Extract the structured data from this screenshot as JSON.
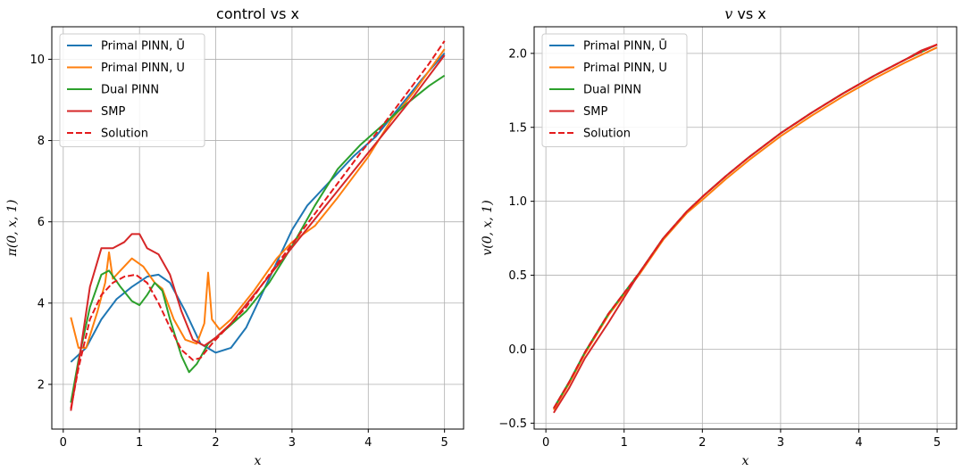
{
  "chart_data": [
    {
      "type": "line",
      "title": "control vs x",
      "xlabel": "x",
      "ylabel": "π(0, x, 1)",
      "xlim": [
        -0.15,
        5.25
      ],
      "ylim": [
        0.9,
        10.8
      ],
      "xticks": [
        "0",
        "1",
        "2",
        "3",
        "4",
        "5"
      ],
      "yticks": [
        "2",
        "4",
        "6",
        "8",
        "10"
      ],
      "grid": true,
      "legend_position": "top-left",
      "series": [
        {
          "name": "Primal PINN, Ū",
          "color": "#1f77b4",
          "dashed": false,
          "x": [
            0.1,
            0.3,
            0.5,
            0.7,
            0.9,
            1.1,
            1.25,
            1.4,
            1.6,
            1.8,
            2.0,
            2.2,
            2.4,
            2.6,
            2.8,
            3.0,
            3.2,
            3.5,
            3.8,
            4.1,
            4.4,
            4.7,
            5.0
          ],
          "y": [
            2.55,
            2.9,
            3.6,
            4.1,
            4.4,
            4.65,
            4.7,
            4.5,
            3.8,
            3.0,
            2.78,
            2.9,
            3.4,
            4.2,
            5.0,
            5.8,
            6.4,
            7.0,
            7.6,
            8.1,
            8.8,
            9.5,
            10.15
          ]
        },
        {
          "name": "Primal PINN, U",
          "color": "#ff7f0e",
          "dashed": false,
          "x": [
            0.1,
            0.2,
            0.3,
            0.45,
            0.55,
            0.6,
            0.65,
            0.75,
            0.9,
            1.05,
            1.2,
            1.3,
            1.45,
            1.6,
            1.75,
            1.85,
            1.9,
            1.95,
            2.05,
            2.2,
            2.5,
            2.8,
            3.0,
            3.3,
            3.6,
            4.0,
            4.3,
            4.6,
            5.0
          ],
          "y": [
            3.65,
            2.9,
            2.9,
            3.8,
            4.5,
            5.25,
            4.6,
            4.8,
            5.1,
            4.9,
            4.5,
            4.35,
            3.6,
            3.1,
            3.0,
            3.5,
            4.75,
            3.6,
            3.35,
            3.6,
            4.3,
            5.1,
            5.5,
            5.9,
            6.6,
            7.6,
            8.5,
            9.2,
            10.25
          ]
        },
        {
          "name": "Dual PINN",
          "color": "#2ca02c",
          "dashed": false,
          "x": [
            0.1,
            0.2,
            0.35,
            0.5,
            0.6,
            0.75,
            0.9,
            1.0,
            1.1,
            1.2,
            1.3,
            1.4,
            1.55,
            1.65,
            1.75,
            1.9,
            2.1,
            2.4,
            2.7,
            3.0,
            3.3,
            3.6,
            3.9,
            4.2,
            4.5,
            4.8,
            5.0
          ],
          "y": [
            1.55,
            2.6,
            3.9,
            4.7,
            4.8,
            4.4,
            4.05,
            3.95,
            4.2,
            4.5,
            4.3,
            3.6,
            2.7,
            2.3,
            2.5,
            3.0,
            3.3,
            3.8,
            4.5,
            5.4,
            6.4,
            7.3,
            7.9,
            8.4,
            8.9,
            9.35,
            9.6
          ]
        },
        {
          "name": "SMP",
          "color": "#d62728",
          "dashed": false,
          "x": [
            0.1,
            0.2,
            0.35,
            0.5,
            0.65,
            0.8,
            0.9,
            1.0,
            1.1,
            1.25,
            1.4,
            1.55,
            1.7,
            1.85,
            2.0,
            2.2,
            2.5,
            2.8,
            3.1,
            3.4,
            3.7,
            4.0,
            4.3,
            4.6,
            5.0
          ],
          "y": [
            1.35,
            2.5,
            4.4,
            5.35,
            5.35,
            5.5,
            5.7,
            5.7,
            5.35,
            5.2,
            4.7,
            3.8,
            3.1,
            2.95,
            3.15,
            3.5,
            4.2,
            4.9,
            5.6,
            6.3,
            7.0,
            7.7,
            8.4,
            9.1,
            10.1
          ]
        },
        {
          "name": "Solution",
          "color": "#e41a1c",
          "dashed": true,
          "x": [
            0.1,
            0.2,
            0.35,
            0.5,
            0.65,
            0.8,
            0.95,
            1.1,
            1.25,
            1.4,
            1.55,
            1.7,
            1.8,
            1.95,
            2.1,
            2.4,
            2.7,
            3.0,
            3.3,
            3.6,
            3.9,
            4.2,
            4.5,
            4.8,
            5.0
          ],
          "y": [
            1.4,
            2.4,
            3.6,
            4.2,
            4.5,
            4.65,
            4.7,
            4.5,
            4.0,
            3.4,
            2.85,
            2.6,
            2.65,
            3.0,
            3.3,
            3.9,
            4.7,
            5.45,
            6.2,
            6.95,
            7.7,
            8.4,
            9.15,
            9.9,
            10.45
          ]
        }
      ]
    },
    {
      "type": "line",
      "title": "v vs x",
      "title_var": "v",
      "title_rest": " vs x",
      "xlabel": "x",
      "ylabel": "v(0, x, 1)",
      "xlim": [
        -0.15,
        5.25
      ],
      "ylim": [
        -0.54,
        2.18
      ],
      "xticks": [
        "0",
        "1",
        "2",
        "3",
        "4",
        "5"
      ],
      "yticks": [
        "−0.5",
        "0.0",
        "0.5",
        "1.0",
        "1.5",
        "2.0"
      ],
      "ytick_values": [
        -0.5,
        0.0,
        0.5,
        1.0,
        1.5,
        2.0
      ],
      "grid": true,
      "legend_position": "top-left",
      "series": [
        {
          "name": "Primal PINN, Ū",
          "color": "#1f77b4",
          "dashed": false,
          "x": [
            0.1,
            0.3,
            0.5,
            0.8,
            1.0,
            1.2,
            1.5,
            1.8,
            2.0,
            2.3,
            2.6,
            3.0,
            3.4,
            3.8,
            4.2,
            4.6,
            5.0
          ],
          "y": [
            -0.4,
            -0.22,
            -0.02,
            0.24,
            0.38,
            0.52,
            0.75,
            0.93,
            1.03,
            1.17,
            1.3,
            1.46,
            1.6,
            1.73,
            1.85,
            1.96,
            2.06
          ]
        },
        {
          "name": "Primal PINN, U",
          "color": "#ff7f0e",
          "dashed": false,
          "x": [
            0.1,
            0.3,
            0.5,
            0.8,
            1.0,
            1.2,
            1.5,
            1.8,
            2.0,
            2.3,
            2.6,
            3.0,
            3.4,
            3.8,
            4.2,
            4.6,
            5.0
          ],
          "y": [
            -0.41,
            -0.23,
            -0.03,
            0.23,
            0.37,
            0.51,
            0.74,
            0.92,
            1.01,
            1.15,
            1.28,
            1.44,
            1.58,
            1.71,
            1.83,
            1.94,
            2.04
          ]
        },
        {
          "name": "Dual PINN",
          "color": "#2ca02c",
          "dashed": false,
          "x": [
            0.1,
            0.3,
            0.5,
            0.8,
            1.0,
            1.2,
            1.5,
            1.8,
            2.0,
            2.3,
            2.6,
            3.0,
            3.4,
            3.8,
            4.2,
            4.6,
            5.0
          ],
          "y": [
            -0.4,
            -0.22,
            -0.02,
            0.24,
            0.38,
            0.52,
            0.75,
            0.93,
            1.03,
            1.17,
            1.3,
            1.46,
            1.6,
            1.73,
            1.85,
            1.96,
            2.06
          ]
        },
        {
          "name": "SMP",
          "color": "#d62728",
          "dashed": false,
          "x": [
            0.1,
            0.3,
            0.5,
            0.8,
            1.0,
            1.2,
            1.5,
            1.8,
            2.0,
            2.3,
            2.6,
            3.0,
            3.4,
            3.8,
            4.2,
            4.6,
            4.8,
            5.0
          ],
          "y": [
            -0.43,
            -0.26,
            -0.06,
            0.18,
            0.35,
            0.52,
            0.75,
            0.93,
            1.03,
            1.17,
            1.3,
            1.46,
            1.6,
            1.73,
            1.85,
            1.96,
            2.02,
            2.06
          ]
        },
        {
          "name": "Solution",
          "color": "#e41a1c",
          "dashed": true,
          "x": [
            0.1,
            0.3,
            0.5,
            0.8,
            1.0,
            1.2,
            1.5,
            1.8,
            2.0,
            2.3,
            2.6,
            3.0,
            3.4,
            3.8,
            4.2,
            4.6,
            5.0
          ],
          "y": [
            -0.4,
            -0.22,
            -0.02,
            0.24,
            0.38,
            0.52,
            0.75,
            0.93,
            1.03,
            1.17,
            1.3,
            1.46,
            1.6,
            1.73,
            1.85,
            1.96,
            2.06
          ]
        }
      ]
    }
  ]
}
